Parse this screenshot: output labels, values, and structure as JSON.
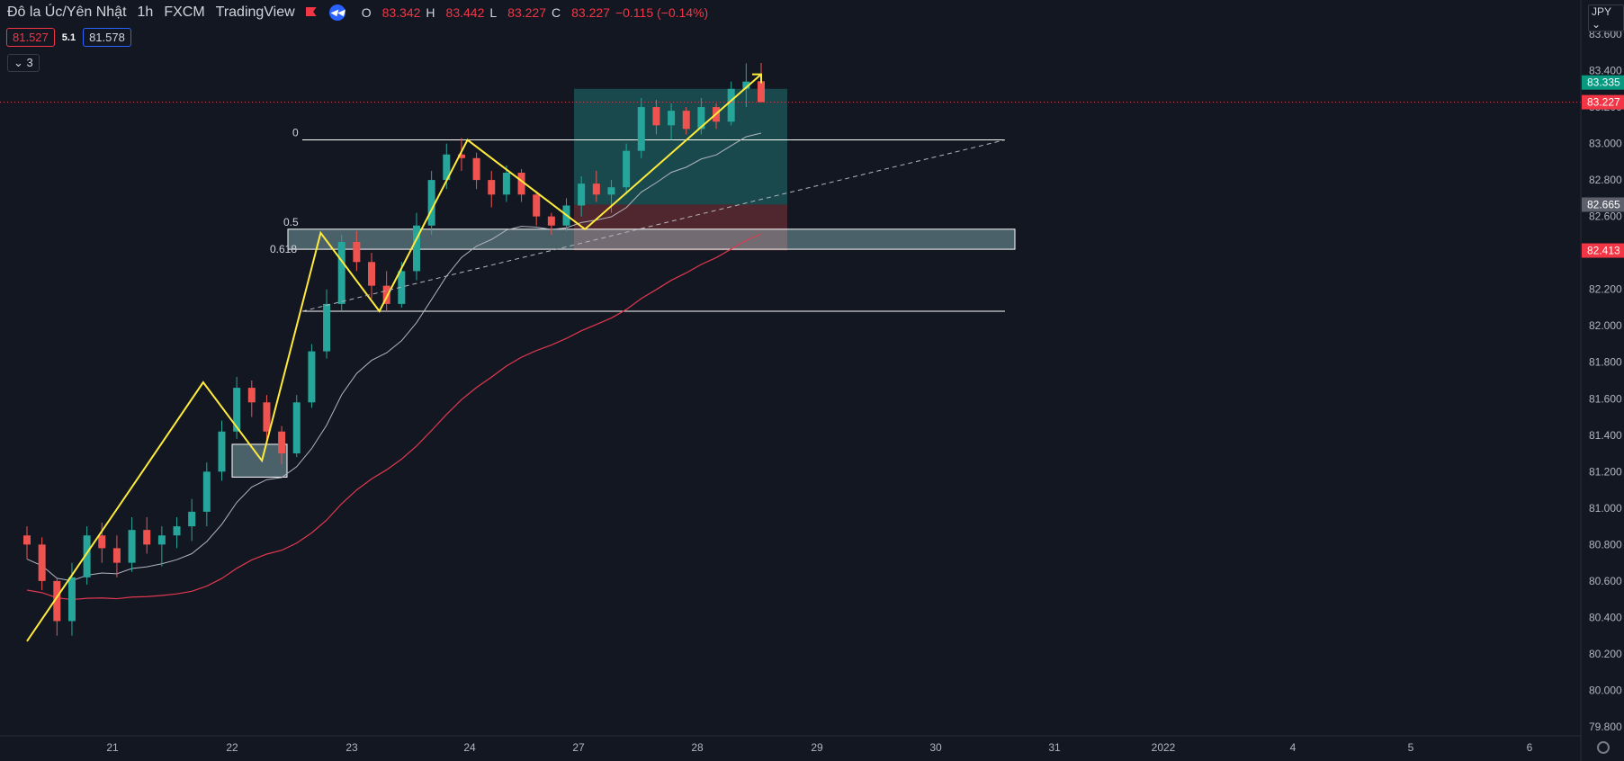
{
  "header": {
    "symbol": "Đô la Úc/Yên Nhật",
    "interval": "1h",
    "exchange": "FXCM",
    "source": "TradingView",
    "open_label": "O",
    "open": "83.342",
    "high_label": "H",
    "high": "83.442",
    "low_label": "L",
    "low": "83.227",
    "close_label": "C",
    "close": "83.227",
    "change": "−0.115 (−0.14%)"
  },
  "bid": "81.527",
  "spread": "5.1",
  "ask": "81.578",
  "indicators_toggle": "3",
  "currency": "JPY",
  "colors": {
    "bg": "#131722",
    "up": "#26a69a",
    "down": "#ef5350",
    "zigzag": "#ffeb3b",
    "ma_fast": "#b2b5be",
    "ma_slow": "#e0384e"
  },
  "chart_data": {
    "type": "candlestick",
    "yaxis_labels": [
      "83.600",
      "83.400",
      "83.200",
      "83.000",
      "82.800",
      "82.600",
      "82.400",
      "82.200",
      "82.000",
      "81.800",
      "81.600",
      "81.400",
      "81.200",
      "81.000",
      "80.800",
      "80.600",
      "80.400",
      "80.200",
      "80.000",
      "79.800"
    ],
    "ylim": [
      79.8,
      83.8
    ],
    "xaxis_labels": [
      "21",
      "22",
      "23",
      "24",
      "27",
      "28",
      "29",
      "30",
      "31",
      "2022",
      "4",
      "5",
      "6"
    ],
    "price_tags": [
      {
        "value": "83.335",
        "price": 83.335,
        "color": "#089981"
      },
      {
        "value": "83.227",
        "price": 83.227,
        "color": "#f23645"
      },
      {
        "value": "82.665",
        "price": 82.665,
        "color": "#5d606b"
      },
      {
        "value": "82.413",
        "price": 82.413,
        "color": "#f23645"
      }
    ],
    "fib_labels": [
      "0",
      "0.5",
      "0.618"
    ],
    "fib_levels": [
      83.02,
      82.53,
      82.42,
      82.08
    ],
    "zigzag": [
      [
        0,
        80.27
      ],
      [
        6,
        81.69
      ],
      [
        8,
        81.26
      ],
      [
        10,
        82.51
      ],
      [
        12,
        82.08
      ],
      [
        15,
        83.02
      ],
      [
        19,
        82.53
      ],
      [
        25,
        83.38
      ]
    ],
    "candles": [
      [
        80.85,
        80.9,
        80.72,
        80.8
      ],
      [
        80.8,
        80.84,
        80.55,
        80.6
      ],
      [
        80.6,
        80.62,
        80.3,
        80.38
      ],
      [
        80.38,
        80.7,
        80.3,
        80.62
      ],
      [
        80.62,
        80.9,
        80.58,
        80.85
      ],
      [
        80.85,
        80.92,
        80.7,
        80.78
      ],
      [
        80.78,
        80.85,
        80.62,
        80.7
      ],
      [
        80.7,
        80.95,
        80.65,
        80.88
      ],
      [
        80.88,
        80.95,
        80.75,
        80.8
      ],
      [
        80.8,
        80.9,
        80.68,
        80.85
      ],
      [
        80.85,
        80.95,
        80.78,
        80.9
      ],
      [
        80.9,
        81.05,
        80.82,
        80.98
      ],
      [
        80.98,
        81.25,
        80.9,
        81.2
      ],
      [
        81.2,
        81.48,
        81.15,
        81.42
      ],
      [
        81.42,
        81.72,
        81.38,
        81.66
      ],
      [
        81.66,
        81.7,
        81.5,
        81.58
      ],
      [
        81.58,
        81.62,
        81.35,
        81.42
      ],
      [
        81.42,
        81.45,
        81.24,
        81.3
      ],
      [
        81.3,
        81.62,
        81.28,
        81.58
      ],
      [
        81.58,
        81.9,
        81.55,
        81.86
      ],
      [
        81.86,
        82.2,
        81.82,
        82.12
      ],
      [
        82.12,
        82.5,
        82.08,
        82.46
      ],
      [
        82.46,
        82.52,
        82.3,
        82.35
      ],
      [
        82.35,
        82.4,
        82.15,
        82.22
      ],
      [
        82.22,
        82.3,
        82.08,
        82.12
      ],
      [
        82.12,
        82.35,
        82.1,
        82.3
      ],
      [
        82.3,
        82.62,
        82.25,
        82.55
      ],
      [
        82.55,
        82.85,
        82.5,
        82.8
      ],
      [
        82.8,
        83.0,
        82.75,
        82.94
      ],
      [
        82.94,
        83.03,
        82.85,
        82.92
      ],
      [
        82.92,
        82.95,
        82.75,
        82.8
      ],
      [
        82.8,
        82.85,
        82.65,
        82.72
      ],
      [
        82.72,
        82.88,
        82.68,
        82.84
      ],
      [
        82.84,
        82.86,
        82.68,
        82.72
      ],
      [
        82.72,
        82.74,
        82.55,
        82.6
      ],
      [
        82.6,
        82.62,
        82.5,
        82.55
      ],
      [
        82.55,
        82.7,
        82.52,
        82.66
      ],
      [
        82.66,
        82.82,
        82.6,
        82.78
      ],
      [
        82.78,
        82.85,
        82.68,
        82.72
      ],
      [
        82.72,
        82.8,
        82.62,
        82.76
      ],
      [
        82.76,
        83.0,
        82.72,
        82.96
      ],
      [
        82.96,
        83.25,
        82.92,
        83.2
      ],
      [
        83.2,
        83.24,
        83.05,
        83.1
      ],
      [
        83.1,
        83.22,
        83.02,
        83.18
      ],
      [
        83.18,
        83.2,
        83.05,
        83.08
      ],
      [
        83.08,
        83.25,
        83.05,
        83.2
      ],
      [
        83.2,
        83.22,
        83.08,
        83.12
      ],
      [
        83.12,
        83.34,
        83.1,
        83.3
      ],
      [
        83.3,
        83.44,
        83.2,
        83.34
      ],
      [
        83.342,
        83.442,
        83.227,
        83.227
      ]
    ]
  }
}
